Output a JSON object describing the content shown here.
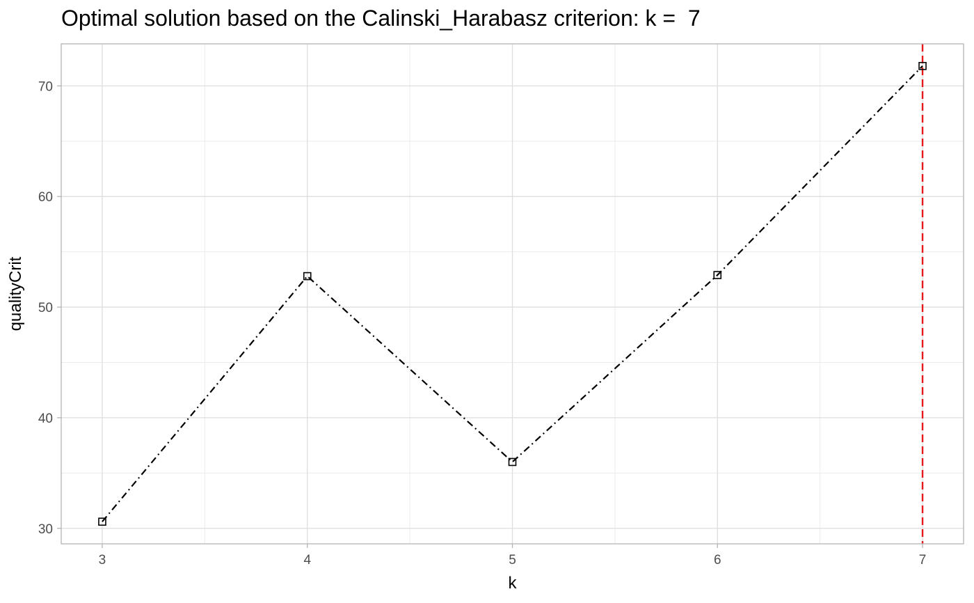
{
  "chart_data": {
    "type": "line",
    "title": "Optimal solution based on the Calinski_Harabasz criterion: k =  7",
    "xlabel": "k",
    "ylabel": "qualityCrit",
    "x": [
      3,
      4,
      5,
      6,
      7
    ],
    "series": [
      {
        "name": "qualityCrit",
        "values": [
          30.6,
          52.8,
          36.0,
          52.9,
          71.8
        ]
      }
    ],
    "xticks": [
      3,
      4,
      5,
      6,
      7
    ],
    "yticks": [
      30,
      40,
      50,
      60,
      70
    ],
    "xlim": [
      2.8,
      7.2
    ],
    "ylim": [
      28.6,
      73.8
    ],
    "optimal_k": 7,
    "grid": true,
    "colors": {
      "line": "#000000",
      "marker": "#000000",
      "optimal_line": "#e41a1c",
      "grid": "#ebebeb",
      "panel_border": "#b3b3b3"
    }
  }
}
